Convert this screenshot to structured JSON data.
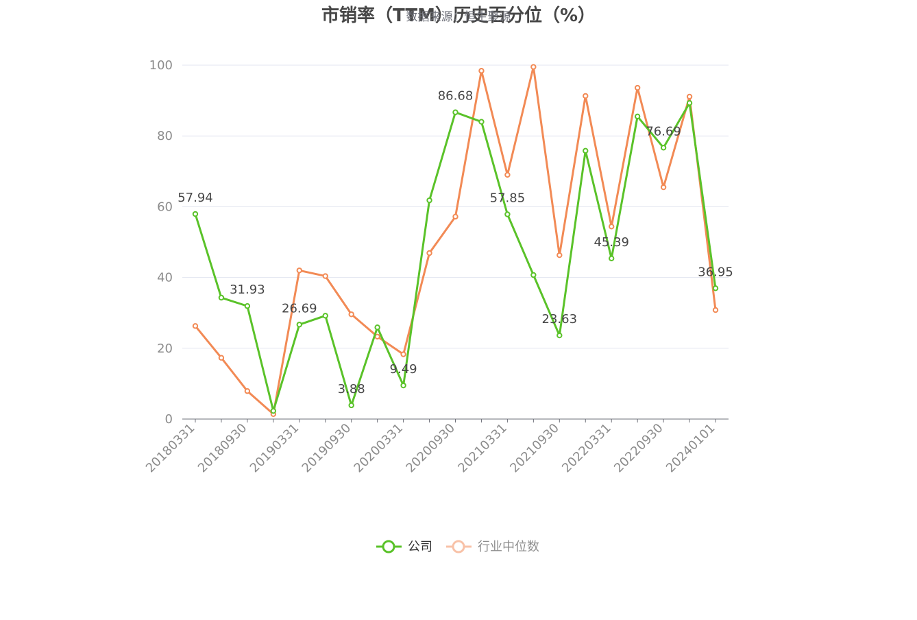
{
  "title": "市销率（TTM）历史百分位（%）",
  "subtitle": "数据来源：恒生聚源",
  "colors": {
    "company": "#5ac229",
    "industry": "#f28a55",
    "grid": "#e3e6f0",
    "axis": "#6e7079"
  },
  "chart_data": {
    "type": "line",
    "title": "市销率（TTM）历史百分位（%）",
    "ylim": [
      0,
      100
    ],
    "yticks": [
      0,
      20,
      40,
      60,
      80,
      100
    ],
    "x": [
      "20180331",
      "20180630",
      "20180930",
      "20181231",
      "20190331",
      "20190630",
      "20190930",
      "20191231",
      "20200331",
      "20200630",
      "20200930",
      "20201231",
      "20210331",
      "20210630",
      "20210930",
      "20211231",
      "20220331",
      "20220630",
      "20220930",
      "20221231",
      "20240101"
    ],
    "xtick_labels": [
      "20180331",
      "20180930",
      "20190331",
      "20190930",
      "20200331",
      "20200930",
      "20210331",
      "20210930",
      "20220331",
      "20220930",
      "20240101"
    ],
    "legend_position": "bottom",
    "grid": true,
    "series": [
      {
        "name": "公司",
        "color": "#5ac229",
        "values": [
          57.94,
          34.3,
          31.93,
          2.3,
          26.69,
          29.2,
          3.88,
          25.9,
          9.49,
          61.8,
          86.68,
          84.0,
          57.85,
          40.7,
          23.63,
          75.8,
          45.39,
          85.5,
          76.69,
          89.3,
          36.95
        ],
        "data_labels": [
          "57.94",
          "",
          "31.93",
          "",
          "26.69",
          "",
          "3.88",
          "",
          "9.49",
          "",
          "86.68",
          "",
          "57.85",
          "",
          "23.63",
          "",
          "45.39",
          "",
          "76.69",
          "",
          "36.95"
        ]
      },
      {
        "name": "行业中位数",
        "color": "#f28a55",
        "values": [
          26.3,
          17.3,
          7.9,
          1.4,
          42.0,
          40.4,
          29.6,
          23.3,
          18.3,
          46.9,
          57.2,
          98.4,
          69.0,
          99.5,
          46.3,
          91.3,
          54.4,
          93.6,
          65.5,
          91.1,
          30.8
        ]
      }
    ]
  }
}
